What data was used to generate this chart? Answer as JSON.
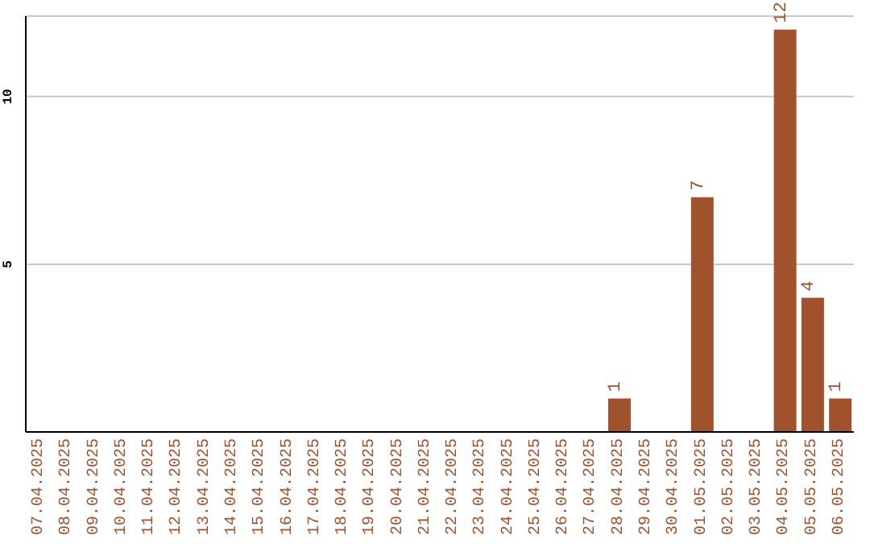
{
  "chart_data": {
    "type": "bar",
    "categories": [
      "07.04.2025",
      "08.04.2025",
      "09.04.2025",
      "10.04.2025",
      "11.04.2025",
      "12.04.2025",
      "13.04.2025",
      "14.04.2025",
      "15.04.2025",
      "16.04.2025",
      "17.04.2025",
      "18.04.2025",
      "19.04.2025",
      "20.04.2025",
      "21.04.2025",
      "22.04.2025",
      "23.04.2025",
      "24.04.2025",
      "25.04.2025",
      "26.04.2025",
      "27.04.2025",
      "28.04.2025",
      "29.04.2025",
      "30.04.2025",
      "01.05.2025",
      "02.05.2025",
      "03.05.2025",
      "04.05.2025",
      "05.05.2025",
      "06.05.2025"
    ],
    "values": [
      0,
      0,
      0,
      0,
      0,
      0,
      0,
      0,
      0,
      0,
      0,
      0,
      0,
      0,
      0,
      0,
      0,
      0,
      0,
      0,
      0,
      1,
      0,
      0,
      7,
      0,
      0,
      12,
      4,
      1
    ],
    "value_labels": [
      null,
      null,
      null,
      null,
      null,
      null,
      null,
      null,
      null,
      null,
      null,
      null,
      null,
      null,
      null,
      null,
      null,
      null,
      null,
      null,
      null,
      "1",
      null,
      null,
      "7",
      null,
      null,
      "12",
      "4",
      "1"
    ],
    "color": "#a0522d",
    "ylim": [
      0,
      12.4
    ],
    "yticks": [
      5,
      10
    ],
    "grid": "y"
  }
}
